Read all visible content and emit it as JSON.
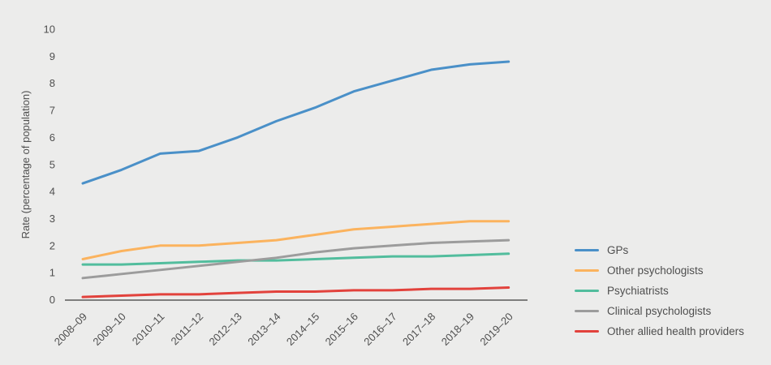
{
  "page": {
    "background_color": "#ececeb",
    "axis_color": "#595959",
    "text_color": "#4f4f4f"
  },
  "chart_data": {
    "type": "line",
    "title": "",
    "xlabel": "",
    "ylabel": "Rate (percentage of population)",
    "ylim": [
      0,
      10
    ],
    "yticks": [
      0,
      1,
      2,
      3,
      4,
      5,
      6,
      7,
      8,
      9,
      10
    ],
    "grid": false,
    "legend_position": "right",
    "categories": [
      "2008–09",
      "2009–10",
      "2010–11",
      "2011–12",
      "2012–13",
      "2013–14",
      "2014–15",
      "2015–16",
      "2016–17",
      "2017–18",
      "2018–19",
      "2019–20"
    ],
    "series": [
      {
        "name": "GPs",
        "color": "#4a90c8",
        "values": [
          4.3,
          4.8,
          5.4,
          5.5,
          6.0,
          6.6,
          7.1,
          7.7,
          8.1,
          8.5,
          8.7,
          8.8
        ]
      },
      {
        "name": "Other psychologists",
        "color": "#fbb35e",
        "values": [
          1.5,
          1.8,
          2.0,
          2.0,
          2.1,
          2.2,
          2.4,
          2.6,
          2.7,
          2.8,
          2.9,
          2.9
        ]
      },
      {
        "name": "Psychiatrists",
        "color": "#52bd9d",
        "values": [
          1.3,
          1.3,
          1.35,
          1.4,
          1.45,
          1.45,
          1.5,
          1.55,
          1.6,
          1.6,
          1.65,
          1.7
        ]
      },
      {
        "name": "Clinical psychologists",
        "color": "#9c9c9c",
        "values": [
          0.8,
          0.95,
          1.1,
          1.25,
          1.4,
          1.55,
          1.75,
          1.9,
          2.0,
          2.1,
          2.15,
          2.2
        ]
      },
      {
        "name": "Other allied health providers",
        "color": "#e2423c",
        "values": [
          0.1,
          0.15,
          0.2,
          0.2,
          0.25,
          0.3,
          0.3,
          0.35,
          0.35,
          0.4,
          0.4,
          0.45
        ]
      }
    ]
  }
}
